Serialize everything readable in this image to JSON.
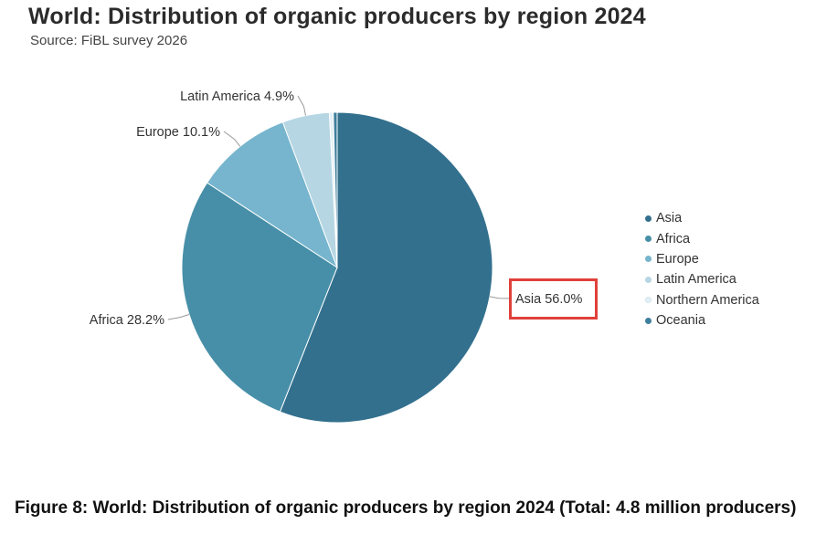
{
  "title": "World: Distribution of organic producers by region 2024",
  "subtitle": "Source: FiBL survey 2026",
  "caption": "Figure 8: World: Distribution of organic producers by region 2024 (Total: 4.8 million producers)",
  "chart_data": {
    "type": "pie",
    "title": "World: Distribution of organic producers by region 2024",
    "subtitle": "Source: FiBL survey 2026",
    "slices": [
      {
        "name": "Asia",
        "value": 56.0,
        "label": "Asia 56.0%",
        "color": "#33708e"
      },
      {
        "name": "Africa",
        "value": 28.2,
        "label": "Africa 28.2%",
        "color": "#478fa8"
      },
      {
        "name": "Europe",
        "value": 10.1,
        "label": "Europe 10.1%",
        "color": "#76b5cd"
      },
      {
        "name": "Latin America",
        "value": 4.9,
        "label": "Latin America 4.9%",
        "color": "#b6d6e3"
      },
      {
        "name": "Northern America",
        "value": 0.4,
        "label": "",
        "color": "#e4f0f5"
      },
      {
        "name": "Oceania",
        "value": 0.4,
        "label": "",
        "color": "#3e7f9c"
      }
    ],
    "legend_position": "right",
    "highlight": "Asia 56.0%",
    "highlight_color": "#e0403a"
  }
}
